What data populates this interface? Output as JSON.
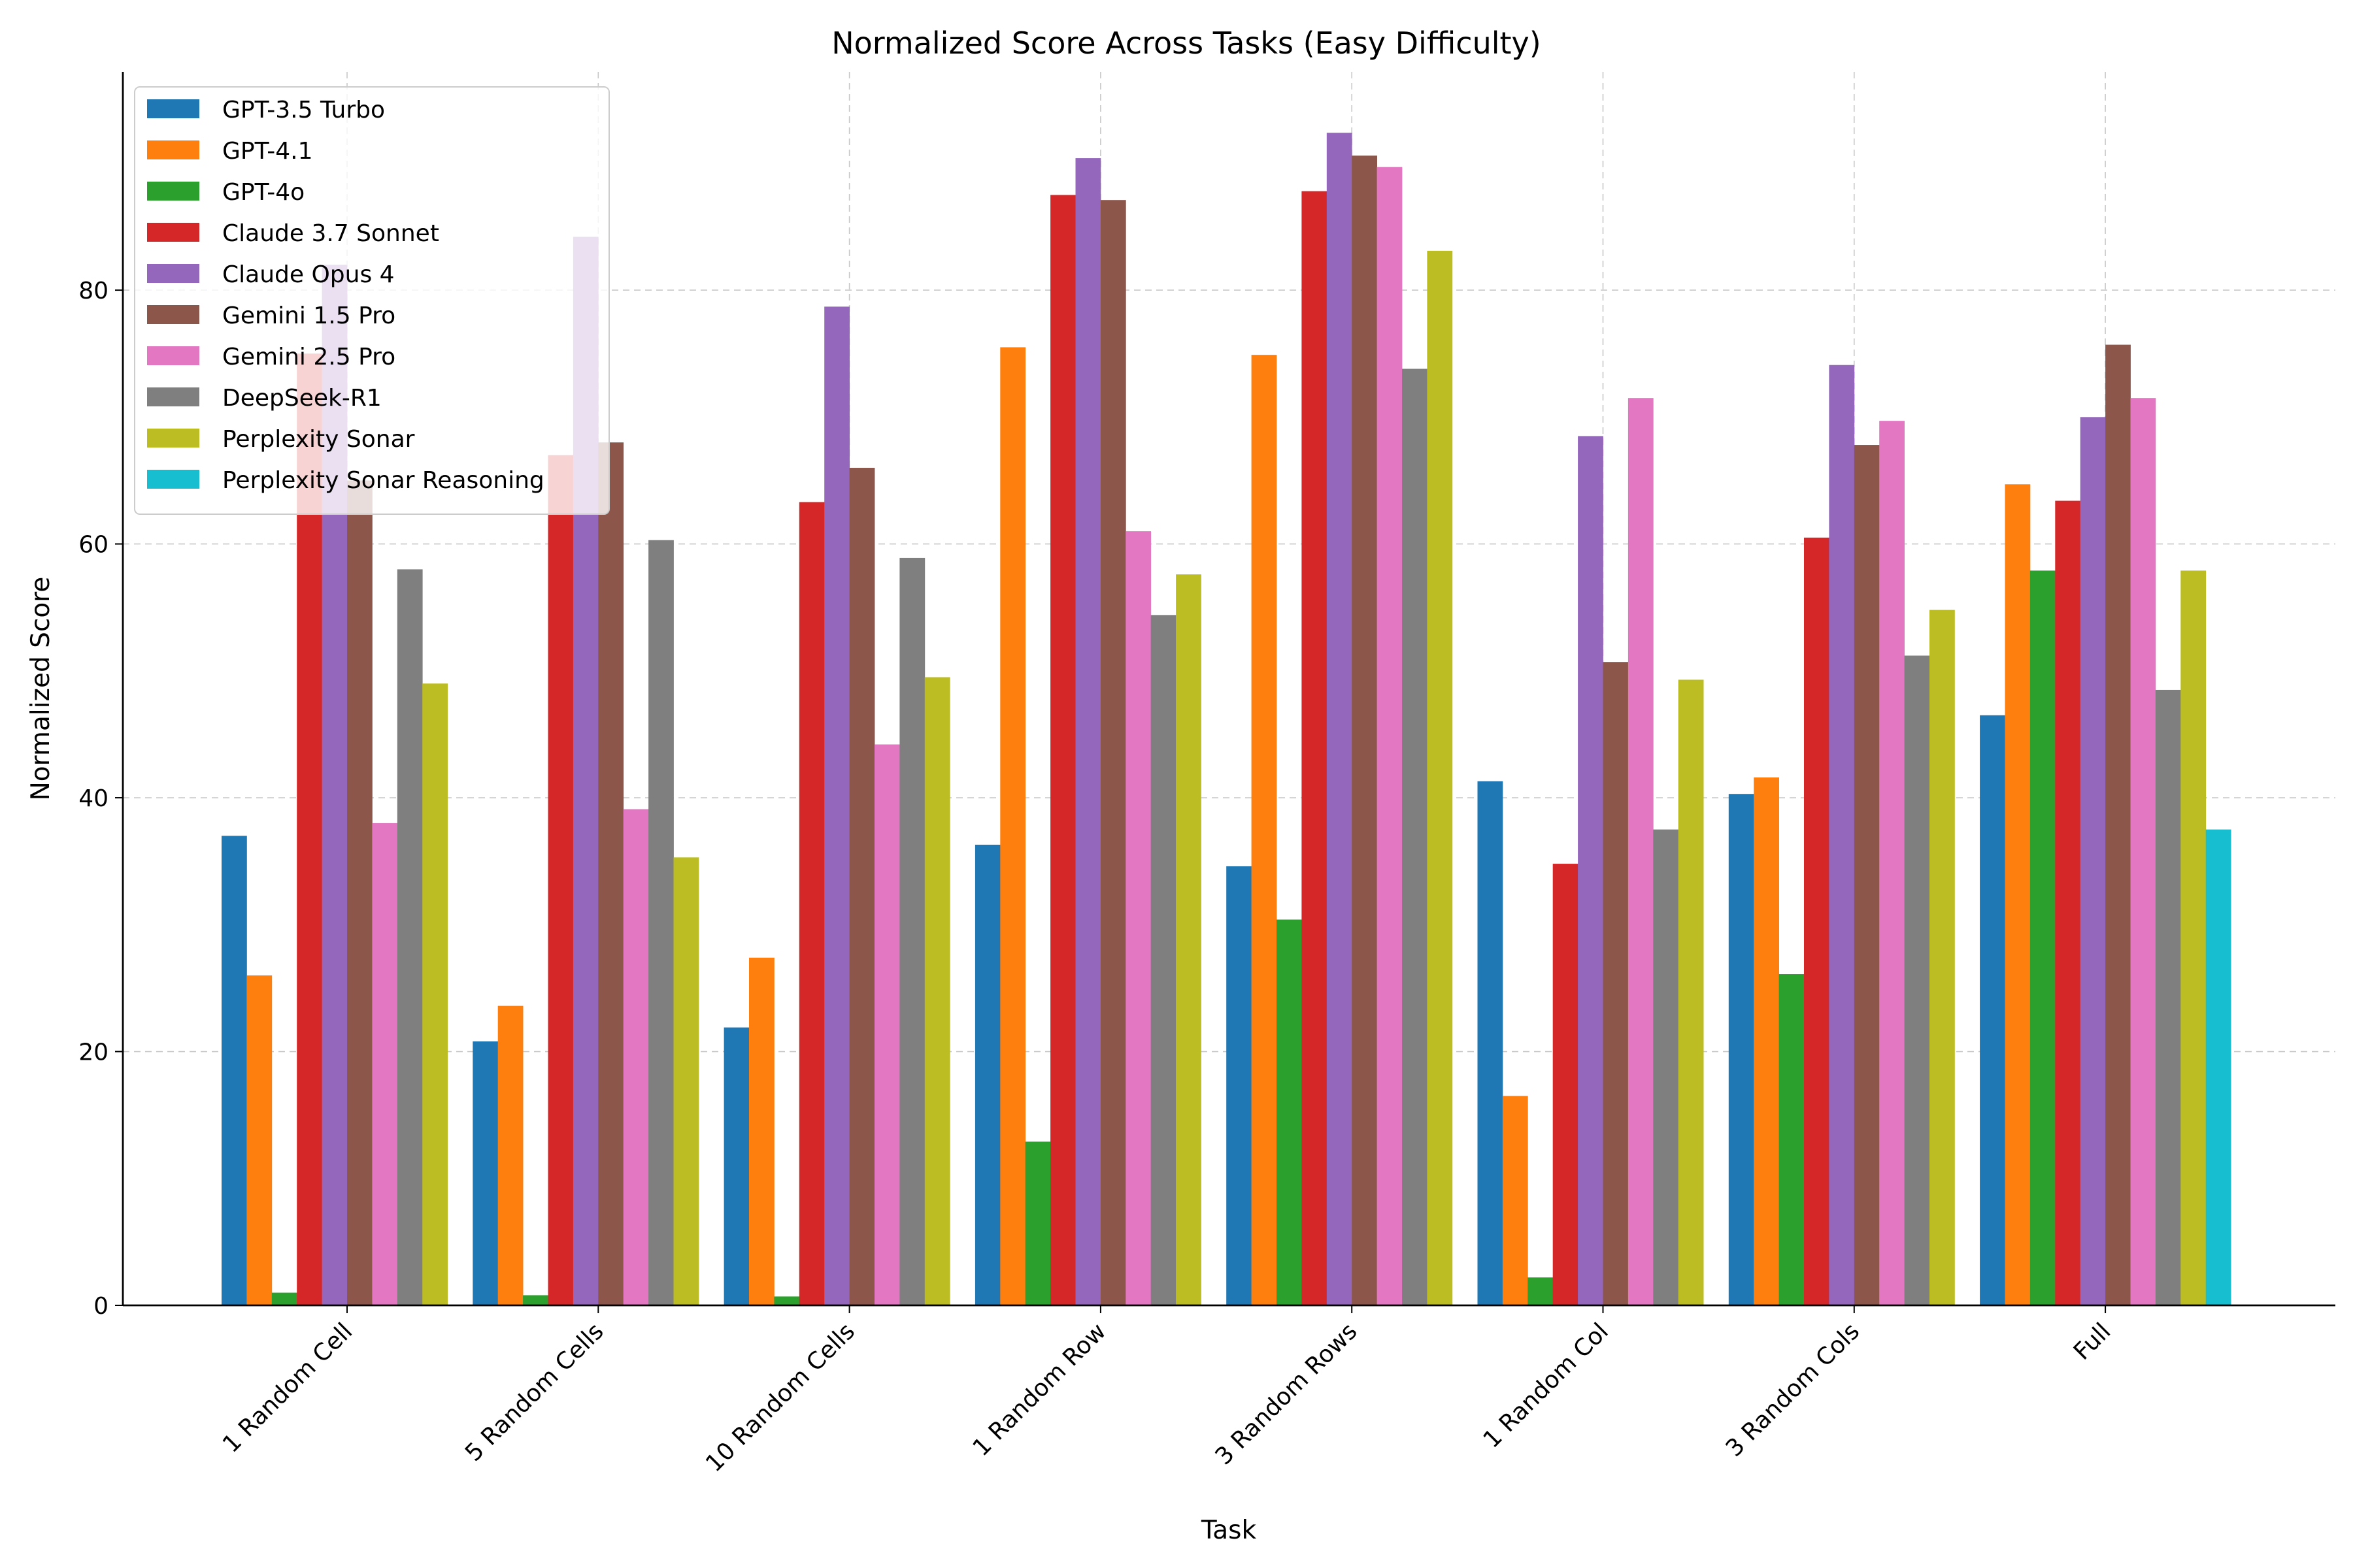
{
  "chart_data": {
    "type": "bar",
    "title": "Normalized Score Across Tasks (Easy Difficulty)",
    "xlabel": "Task",
    "ylabel": "Normalized Score",
    "ylim": [
      0,
      97.2
    ],
    "yticks": [
      0,
      20,
      40,
      60,
      80
    ],
    "grid": true,
    "legend_position": "top-left",
    "categories": [
      "1 Random Cell",
      "5 Random Cells",
      "10 Random Cells",
      "1 Random Row",
      "3 Random Rows",
      "1 Random Col",
      "3 Random Cols",
      "Full"
    ],
    "series": [
      {
        "name": "GPT-3.5 Turbo",
        "color": "#1f77b4",
        "values": [
          37.0,
          20.8,
          21.9,
          36.3,
          34.6,
          41.3,
          40.3,
          46.5
        ]
      },
      {
        "name": "GPT-4.1",
        "color": "#ff7f0e",
        "values": [
          26.0,
          23.6,
          27.4,
          75.5,
          74.9,
          16.5,
          41.6,
          64.7
        ]
      },
      {
        "name": "GPT-4o",
        "color": "#2ca02c",
        "values": [
          1.0,
          0.8,
          0.7,
          12.9,
          30.4,
          2.2,
          26.1,
          57.9
        ]
      },
      {
        "name": "Claude 3.7 Sonnet",
        "color": "#d62728",
        "values": [
          75.0,
          67.0,
          63.3,
          87.5,
          87.8,
          34.8,
          60.5,
          63.4
        ]
      },
      {
        "name": "Claude Opus 4",
        "color": "#9467bd",
        "values": [
          82.0,
          84.2,
          78.7,
          90.4,
          92.4,
          68.5,
          74.1,
          70.0
        ]
      },
      {
        "name": "Gemini 1.5 Pro",
        "color": "#8c564b",
        "values": [
          65.0,
          68.0,
          66.0,
          87.1,
          90.6,
          50.7,
          67.8,
          75.7
        ]
      },
      {
        "name": "Gemini 2.5 Pro",
        "color": "#e377c2",
        "values": [
          38.0,
          39.1,
          44.2,
          61.0,
          89.7,
          71.5,
          69.7,
          71.5
        ]
      },
      {
        "name": "DeepSeek-R1",
        "color": "#7f7f7f",
        "values": [
          58.0,
          60.3,
          58.9,
          54.4,
          73.8,
          37.5,
          51.2,
          48.5
        ]
      },
      {
        "name": "Perplexity Sonar",
        "color": "#bcbd22",
        "values": [
          49.0,
          35.3,
          49.5,
          57.6,
          83.1,
          49.3,
          54.8,
          57.9
        ]
      },
      {
        "name": "Perplexity Sonar Reasoning",
        "color": "#17becf",
        "values": [
          null,
          null,
          null,
          null,
          null,
          null,
          null,
          37.5
        ]
      }
    ]
  }
}
